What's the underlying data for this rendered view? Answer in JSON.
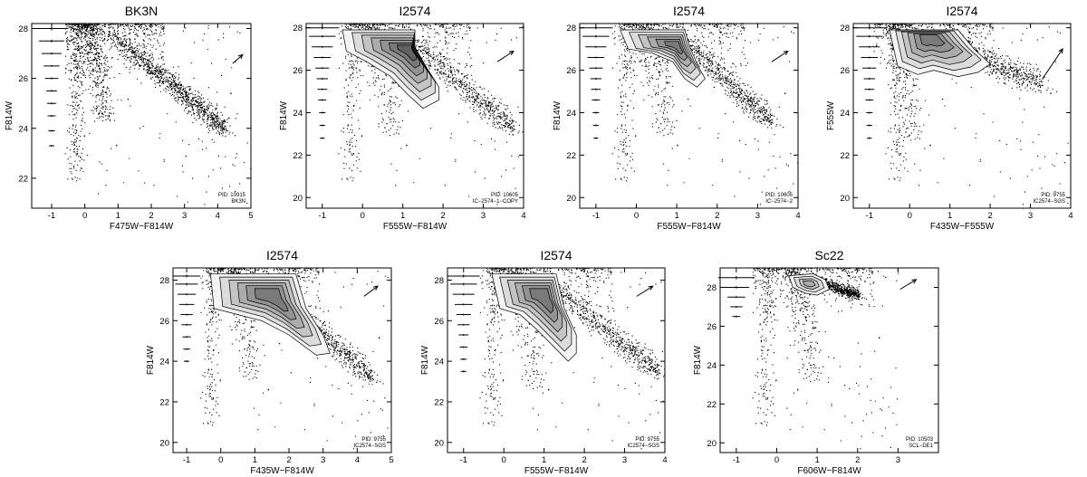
{
  "chart_data": [
    {
      "type": "scatter",
      "title": "BK3N",
      "xlabel": "F475W−F814W",
      "ylabel": "F814W",
      "xlim": [
        -1.6,
        5
      ],
      "ylim": [
        28.2,
        20.8
      ],
      "xticks": [
        -1,
        0,
        1,
        2,
        3,
        4,
        5
      ],
      "yticks": [
        22,
        24,
        26,
        28
      ],
      "pid_label": "PID: 10915",
      "field_label": "BK3N",
      "contours": false,
      "tip": [
        0.6,
        24.8
      ],
      "rgb": [
        [
          0.7,
          27.9
        ],
        [
          4.2,
          24.0
        ]
      ],
      "spread": 0.55,
      "err_y": [
        23.3,
        23.9,
        24.5,
        25.0,
        25.5,
        26.0,
        26.5,
        27.0,
        27.5,
        28.0
      ],
      "err_w": [
        0.08,
        0.1,
        0.12,
        0.14,
        0.16,
        0.2,
        0.24,
        0.3,
        0.38,
        0.5
      ],
      "arrow": [
        [
          4.45,
          26.6
        ],
        [
          4.75,
          26.95
        ]
      ]
    },
    {
      "type": "scatter",
      "title": "I2574",
      "xlabel": "F555W−F814W",
      "ylabel": "F814W",
      "xlim": [
        -1.4,
        4
      ],
      "ylim": [
        28.2,
        19.5
      ],
      "xticks": [
        -1,
        0,
        1,
        2,
        3,
        4
      ],
      "yticks": [
        20,
        22,
        24,
        26,
        28
      ],
      "pid_label": "PID: 10605",
      "field_label": "IC−2574−1−COPY",
      "contours": true,
      "tip": [
        0.75,
        23.6
      ],
      "rgb": [
        [
          1.0,
          27.8
        ],
        [
          3.7,
          23.3
        ]
      ],
      "spread": 0.6,
      "contour_pts": [
        [
          -0.5,
          27.9
        ],
        [
          -0.4,
          26.9
        ],
        [
          0.1,
          26.4
        ],
        [
          0.7,
          25.7
        ],
        [
          1.1,
          24.9
        ],
        [
          1.5,
          24.2
        ],
        [
          1.9,
          24.6
        ],
        [
          1.9,
          25.2
        ],
        [
          1.6,
          26.1
        ],
        [
          1.3,
          27.1
        ],
        [
          1.3,
          27.9
        ]
      ],
      "contour_levels": [
        1,
        0.86,
        0.72,
        0.58,
        0.45,
        0.32,
        0.2
      ],
      "contour_center": [
        1.2,
        27.0
      ],
      "err_y": [
        22.8,
        23.4,
        24.0,
        24.6,
        25.1,
        25.6,
        26.1,
        26.6,
        27.1,
        27.6,
        28.0
      ],
      "err_w": [
        0.06,
        0.07,
        0.08,
        0.1,
        0.12,
        0.14,
        0.17,
        0.21,
        0.26,
        0.33,
        0.42
      ],
      "arrow": [
        [
          3.35,
          26.4
        ],
        [
          3.75,
          26.9
        ]
      ]
    },
    {
      "type": "scatter",
      "title": "I2574",
      "xlabel": "F555W−F814W",
      "ylabel": "F814W",
      "xlim": [
        -1.4,
        4
      ],
      "ylim": [
        28.2,
        19.5
      ],
      "xticks": [
        -1,
        0,
        1,
        2,
        3,
        4
      ],
      "yticks": [
        20,
        22,
        24,
        26,
        28
      ],
      "pid_label": "PID: 10605",
      "field_label": "IC−2574−2",
      "contours": true,
      "tip": [
        0.75,
        23.6
      ],
      "rgb": [
        [
          1.0,
          27.8
        ],
        [
          3.3,
          23.6
        ]
      ],
      "spread": 0.55,
      "contour_pts": [
        [
          -0.4,
          27.9
        ],
        [
          -0.2,
          27.0
        ],
        [
          0.4,
          26.8
        ],
        [
          0.9,
          26.4
        ],
        [
          1.2,
          25.6
        ],
        [
          1.5,
          25.2
        ],
        [
          1.7,
          25.6
        ],
        [
          1.5,
          26.3
        ],
        [
          1.3,
          27.2
        ],
        [
          1.2,
          27.9
        ]
      ],
      "contour_levels": [
        1,
        0.84,
        0.68,
        0.52,
        0.37,
        0.22
      ],
      "contour_center": [
        1.0,
        27.2
      ],
      "err_y": [
        22.8,
        23.4,
        24.0,
        24.6,
        25.1,
        25.6,
        26.1,
        26.6,
        27.1,
        27.6,
        28.0
      ],
      "err_w": [
        0.06,
        0.07,
        0.08,
        0.1,
        0.12,
        0.14,
        0.17,
        0.21,
        0.26,
        0.33,
        0.42
      ],
      "arrow": [
        [
          3.35,
          26.4
        ],
        [
          3.75,
          26.9
        ]
      ]
    },
    {
      "type": "scatter",
      "title": "I2574",
      "xlabel": "F435W−F555W",
      "ylabel": "F555W",
      "xlim": [
        -1.4,
        4
      ],
      "ylim": [
        28.2,
        19.5
      ],
      "xticks": [
        -1,
        0,
        1,
        2,
        3,
        4
      ],
      "yticks": [
        20,
        22,
        24,
        26,
        28
      ],
      "pid_label": "PID: 9755",
      "field_label": "IC2574−SGS",
      "contours": true,
      "tip": [
        0.1,
        23.4
      ],
      "rgb": [
        [
          0.4,
          27.8
        ],
        [
          3.2,
          25.4
        ]
      ],
      "spread": 0.75,
      "contour_pts": [
        [
          -0.5,
          27.9
        ],
        [
          -0.3,
          26.2
        ],
        [
          0.2,
          25.8
        ],
        [
          0.6,
          26.0
        ],
        [
          1.2,
          25.7
        ],
        [
          1.7,
          25.9
        ],
        [
          2.0,
          26.3
        ],
        [
          1.6,
          27.0
        ],
        [
          1.2,
          27.9
        ]
      ],
      "contour_levels": [
        1,
        0.85,
        0.7,
        0.55,
        0.4,
        0.25
      ],
      "contour_center": [
        0.5,
        27.6
      ],
      "err_y": [
        22.8,
        23.4,
        24.0,
        24.6,
        25.1,
        25.6,
        26.1,
        26.6,
        27.1,
        27.6,
        28.0
      ],
      "err_w": [
        0.06,
        0.07,
        0.08,
        0.1,
        0.12,
        0.14,
        0.17,
        0.21,
        0.26,
        0.33,
        0.42
      ],
      "arrow": [
        [
          3.3,
          25.6
        ],
        [
          3.8,
          27.0
        ]
      ]
    },
    {
      "type": "scatter",
      "title": "I2574",
      "xlabel": "F435W−F814W",
      "ylabel": "F814W",
      "xlim": [
        -1.4,
        5
      ],
      "ylim": [
        28.6,
        19.5
      ],
      "xticks": [
        -1,
        0,
        1,
        2,
        3,
        4,
        5
      ],
      "yticks": [
        20,
        22,
        24,
        26,
        28
      ],
      "pid_label": "PID: 9755",
      "field_label": "IC2574−SGS",
      "contours": true,
      "tip": [
        0.9,
        23.8
      ],
      "rgb": [
        [
          1.2,
          28.2
        ],
        [
          4.4,
          23.2
        ]
      ],
      "spread": 0.6,
      "contour_pts": [
        [
          -0.3,
          28.3
        ],
        [
          -0.2,
          26.6
        ],
        [
          0.5,
          26.3
        ],
        [
          1.2,
          26.0
        ],
        [
          2.0,
          25.3
        ],
        [
          2.8,
          24.3
        ],
        [
          3.2,
          24.4
        ],
        [
          3.0,
          25.3
        ],
        [
          2.5,
          26.6
        ],
        [
          2.2,
          28.3
        ]
      ],
      "contour_levels": [
        1,
        0.85,
        0.7,
        0.56,
        0.42,
        0.28
      ],
      "contour_center": [
        1.5,
        27.3
      ],
      "err_y": [
        24.0,
        24.6,
        25.2,
        25.8,
        26.3,
        26.8,
        27.3,
        27.8,
        28.2
      ],
      "err_w": [
        0.08,
        0.1,
        0.12,
        0.15,
        0.18,
        0.22,
        0.27,
        0.33,
        0.4
      ],
      "arrow": [
        [
          4.2,
          27.2
        ],
        [
          4.6,
          27.7
        ]
      ]
    },
    {
      "type": "scatter",
      "title": "I2574",
      "xlabel": "F555W−F814W",
      "ylabel": "F814W",
      "xlim": [
        -1.4,
        4
      ],
      "ylim": [
        28.6,
        19.5
      ],
      "xticks": [
        -1,
        0,
        1,
        2,
        3,
        4
      ],
      "yticks": [
        20,
        22,
        24,
        26,
        28
      ],
      "pid_label": "PID: 9755",
      "field_label": "IC2574−SGS",
      "contours": true,
      "tip": [
        0.8,
        23.4
      ],
      "rgb": [
        [
          1.0,
          28.1
        ],
        [
          3.8,
          23.5
        ]
      ],
      "spread": 0.6,
      "contour_pts": [
        [
          -0.3,
          28.3
        ],
        [
          -0.1,
          26.6
        ],
        [
          0.4,
          26.3
        ],
        [
          0.8,
          25.6
        ],
        [
          1.2,
          24.8
        ],
        [
          1.6,
          24.0
        ],
        [
          1.8,
          24.4
        ],
        [
          1.8,
          25.3
        ],
        [
          1.5,
          26.6
        ],
        [
          1.3,
          28.3
        ]
      ],
      "contour_levels": [
        1,
        0.85,
        0.7,
        0.56,
        0.42,
        0.28
      ],
      "contour_center": [
        1.0,
        27.3
      ],
      "err_y": [
        23.5,
        24.1,
        24.7,
        25.3,
        25.8,
        26.3,
        26.8,
        27.3,
        27.8,
        28.2
      ],
      "err_w": [
        0.07,
        0.08,
        0.1,
        0.12,
        0.15,
        0.18,
        0.22,
        0.27,
        0.33,
        0.4
      ],
      "arrow": [
        [
          3.3,
          27.2
        ],
        [
          3.7,
          27.7
        ]
      ]
    },
    {
      "type": "scatter",
      "title": "Sc22",
      "xlabel": "F606W−F814W",
      "ylabel": "F814W",
      "xlim": [
        -1.4,
        4
      ],
      "ylim": [
        29.0,
        19.5
      ],
      "xticks": [
        -1,
        0,
        1,
        2,
        3
      ],
      "yticks": [
        20,
        22,
        24,
        26,
        28
      ],
      "pid_label": "PID: 10503",
      "field_label": "SCL−DE1",
      "contours": true,
      "tip": [
        0.9,
        23.9
      ],
      "rgb": [
        [
          0.7,
          28.6
        ],
        [
          2.0,
          27.6
        ]
      ],
      "spread": 0.35,
      "contour_pts": [
        [
          0.3,
          28.6
        ],
        [
          0.4,
          28.0
        ],
        [
          0.7,
          27.7
        ],
        [
          1.0,
          27.6
        ],
        [
          1.3,
          27.9
        ],
        [
          1.2,
          28.4
        ],
        [
          0.9,
          28.7
        ]
      ],
      "contour_levels": [
        1,
        0.75,
        0.5,
        0.3
      ],
      "contour_center": [
        0.8,
        28.2
      ],
      "err_y": [
        26.5,
        27.0,
        27.5,
        28.0,
        28.5
      ],
      "err_w": [
        0.1,
        0.15,
        0.22,
        0.32,
        0.45
      ],
      "arrow": [
        [
          3.05,
          27.9
        ],
        [
          3.45,
          28.4
        ]
      ]
    }
  ]
}
